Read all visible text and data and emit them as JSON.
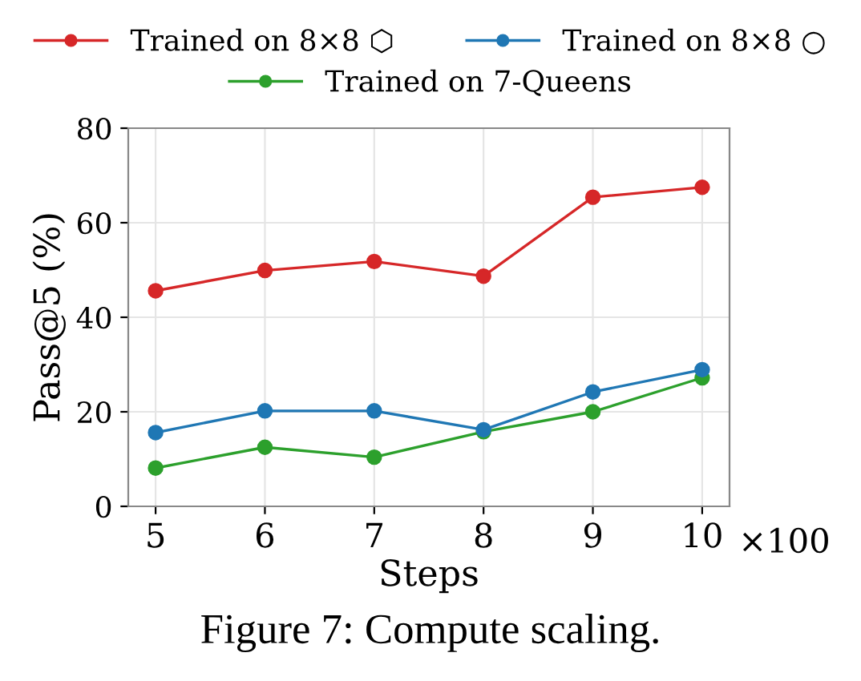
{
  "chart_data": {
    "type": "line",
    "xlabel": "Steps",
    "ylabel": "Pass@5 (%)",
    "x": [
      5,
      6,
      7,
      8,
      9,
      10
    ],
    "series": [
      {
        "name": "Trained on 8×8 ⬡",
        "color": "#d62728",
        "values": [
          45.6,
          49.9,
          51.8,
          48.7,
          65.4,
          67.5
        ]
      },
      {
        "name": "Trained on 8×8 ○",
        "color": "#1f77b4",
        "values": [
          15.6,
          20.2,
          20.2,
          16.2,
          24.2,
          28.9
        ]
      },
      {
        "name": "Trained on 7-Queens",
        "color": "#2ca02c",
        "values": [
          8.1,
          12.5,
          10.4,
          15.8,
          20.0,
          27.2
        ]
      }
    ],
    "xlim": [
      4.75,
      10.25
    ],
    "xticks": [
      5,
      6,
      7,
      8,
      9,
      10
    ],
    "ylim": [
      0,
      80
    ],
    "yticks": [
      0,
      20,
      40,
      60,
      80
    ],
    "grid": true,
    "legend": "top",
    "marker": "circle",
    "line_style": "solid",
    "annotations": [
      "×100",
      "Figure 7: Compute scaling."
    ]
  }
}
